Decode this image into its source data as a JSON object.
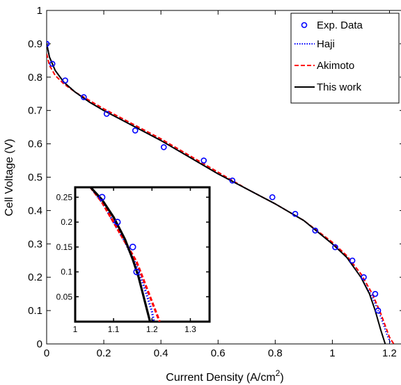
{
  "chart_data": [
    {
      "type": "line",
      "title": "",
      "xlabel": "Current Density (A/cm",
      "xlabel_sup": "2",
      "xlabel_end": ")",
      "ylabel": "Cell Voltage (V)",
      "xlim": [
        0,
        1.25
      ],
      "ylim": [
        0,
        1
      ],
      "xticks": [
        "0",
        "0.2",
        "0.4",
        "0.6",
        "0.8",
        "1",
        "1.2"
      ],
      "xtick_values": [
        0,
        0.2,
        0.4,
        0.6,
        0.8,
        1.0,
        1.2
      ],
      "yticks": [
        "0",
        "0.1",
        "0.2",
        "0.3",
        "0.4",
        "0.5",
        "0.6",
        "0.7",
        "0.8",
        "0.9",
        "1"
      ],
      "ytick_values": [
        0,
        0.1,
        0.2,
        0.3,
        0.4,
        0.5,
        0.6,
        0.7,
        0.8,
        0.9,
        1.0
      ],
      "grid": false,
      "legend_position": "top-right",
      "series": [
        {
          "name": "Exp. Data",
          "style": "markers",
          "color": "#0000ff",
          "x": [
            0.0,
            0.02,
            0.065,
            0.13,
            0.21,
            0.31,
            0.41,
            0.55,
            0.65,
            0.79,
            0.87,
            0.94,
            1.01,
            1.07,
            1.11,
            1.15,
            1.16
          ],
          "y": [
            0.9,
            0.84,
            0.79,
            0.74,
            0.69,
            0.64,
            0.59,
            0.55,
            0.49,
            0.44,
            0.39,
            0.34,
            0.29,
            0.25,
            0.2,
            0.15,
            0.1
          ]
        },
        {
          "name": "Haji",
          "style": "dotted",
          "color": "#0000ff",
          "x": [
            0.0,
            0.01,
            0.03,
            0.06,
            0.1,
            0.15,
            0.2,
            0.3,
            0.4,
            0.5,
            0.6,
            0.7,
            0.8,
            0.9,
            1.0,
            1.05,
            1.1,
            1.14,
            1.17,
            1.19,
            1.205
          ],
          "y": [
            0.905,
            0.86,
            0.82,
            0.785,
            0.755,
            0.725,
            0.7,
            0.655,
            0.61,
            0.56,
            0.51,
            0.465,
            0.42,
            0.37,
            0.3,
            0.26,
            0.2,
            0.14,
            0.08,
            0.03,
            0.0
          ]
        },
        {
          "name": "Akimoto",
          "style": "dashed",
          "color": "#ff0000",
          "x": [
            0.0,
            0.01,
            0.03,
            0.06,
            0.1,
            0.15,
            0.2,
            0.3,
            0.4,
            0.5,
            0.6,
            0.7,
            0.8,
            0.9,
            1.0,
            1.05,
            1.1,
            1.14,
            1.17,
            1.2,
            1.215
          ],
          "y": [
            0.87,
            0.835,
            0.805,
            0.78,
            0.755,
            0.73,
            0.705,
            0.66,
            0.615,
            0.565,
            0.515,
            0.465,
            0.42,
            0.37,
            0.305,
            0.265,
            0.21,
            0.15,
            0.09,
            0.02,
            0.0
          ]
        },
        {
          "name": "This work",
          "style": "solid",
          "color": "#000000",
          "x": [
            0.0,
            0.01,
            0.03,
            0.06,
            0.1,
            0.15,
            0.2,
            0.3,
            0.4,
            0.5,
            0.6,
            0.7,
            0.8,
            0.9,
            1.0,
            1.05,
            1.1,
            1.13,
            1.15,
            1.17,
            1.185
          ],
          "y": [
            0.9,
            0.86,
            0.82,
            0.785,
            0.755,
            0.725,
            0.7,
            0.655,
            0.61,
            0.56,
            0.51,
            0.465,
            0.42,
            0.37,
            0.3,
            0.26,
            0.2,
            0.15,
            0.1,
            0.04,
            0.0
          ]
        }
      ]
    },
    {
      "type": "line",
      "title": "",
      "xlabel": "",
      "ylabel": "",
      "xlim": [
        1.0,
        1.35
      ],
      "ylim": [
        0.0,
        0.27
      ],
      "xticks": [
        "1",
        "1.1",
        "1.2",
        "1.3"
      ],
      "xtick_values": [
        1.0,
        1.1,
        1.2,
        1.3
      ],
      "yticks": [
        "0.05",
        "0.1",
        "0.15",
        "0.2",
        "0.25"
      ],
      "ytick_values": [
        0.05,
        0.1,
        0.15,
        0.2,
        0.25
      ],
      "grid": false,
      "series": [
        {
          "style": "markers",
          "color": "#0000ff",
          "x": [
            1.07,
            1.11,
            1.15,
            1.16
          ],
          "y": [
            0.25,
            0.2,
            0.15,
            0.1
          ]
        },
        {
          "style": "dotted",
          "color": "#0000ff",
          "x": [
            1.04,
            1.07,
            1.1,
            1.13,
            1.155,
            1.175,
            1.19,
            1.2,
            1.205
          ],
          "y": [
            0.27,
            0.24,
            0.2,
            0.16,
            0.12,
            0.08,
            0.045,
            0.02,
            0.0
          ]
        },
        {
          "style": "dashed",
          "color": "#ff0000",
          "x": [
            1.04,
            1.07,
            1.1,
            1.13,
            1.16,
            1.18,
            1.195,
            1.21,
            1.22
          ],
          "y": [
            0.27,
            0.24,
            0.2,
            0.16,
            0.12,
            0.08,
            0.05,
            0.02,
            0.0
          ]
        },
        {
          "style": "solid",
          "color": "#000000",
          "x": [
            1.04,
            1.07,
            1.1,
            1.13,
            1.15,
            1.165,
            1.175,
            1.185,
            1.195
          ],
          "y": [
            0.27,
            0.245,
            0.21,
            0.165,
            0.125,
            0.09,
            0.06,
            0.03,
            0.0
          ]
        }
      ]
    }
  ]
}
